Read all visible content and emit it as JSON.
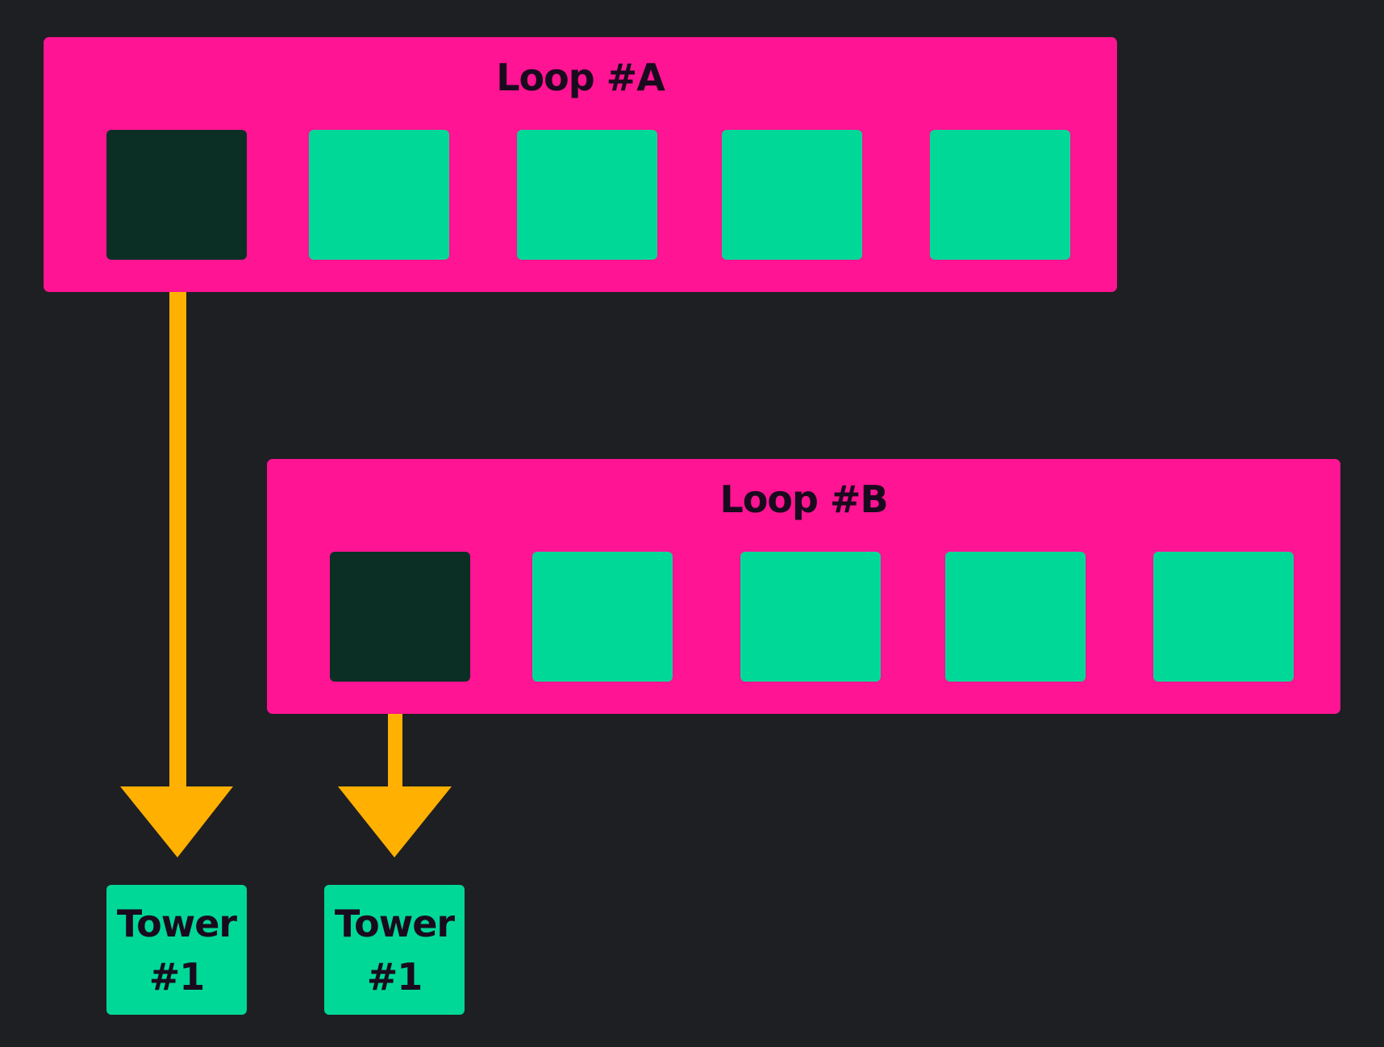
{
  "colors": {
    "background": "#1e1f22",
    "loop_fill": "#ff1493",
    "slot_fill": "#00d897",
    "active_slot_fill": "#0c2f25",
    "arrow": "#ffb000",
    "text": "#1a0a1e"
  },
  "loops": [
    {
      "title": "Loop #A",
      "slot_count": 5,
      "active_slot": 1
    },
    {
      "title": "Loop #B",
      "slot_count": 5,
      "active_slot": 1
    }
  ],
  "towers": [
    {
      "line1": "Tower",
      "line2": "#1"
    },
    {
      "line1": "Tower",
      "line2": "#1"
    }
  ]
}
